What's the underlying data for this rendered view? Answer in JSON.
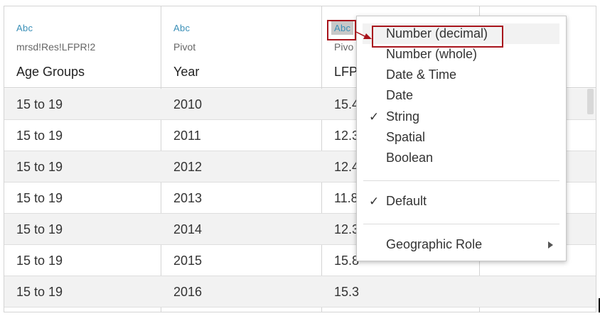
{
  "columns": [
    {
      "type_label": "Abc",
      "source": "mrsd!Res!LFPR!2",
      "field": "Age Groups"
    },
    {
      "type_label": "Abc",
      "source": "Pivot",
      "field": "Year"
    },
    {
      "type_label": "Abc",
      "source": "Pivo",
      "field": "LFP"
    },
    {
      "type_label": "",
      "source": "",
      "field": ""
    }
  ],
  "rows": [
    {
      "age": "15 to 19",
      "year": "2010",
      "value": "15.4"
    },
    {
      "age": "15 to 19",
      "year": "2011",
      "value": "12.3"
    },
    {
      "age": "15 to 19",
      "year": "2012",
      "value": "12.4"
    },
    {
      "age": "15 to 19",
      "year": "2013",
      "value": "11.8"
    },
    {
      "age": "15 to 19",
      "year": "2014",
      "value": "12.3"
    },
    {
      "age": "15 to 19",
      "year": "2015",
      "value": "15.8"
    },
    {
      "age": "15 to 19",
      "year": "2016",
      "value": "15.3"
    }
  ],
  "menu": {
    "type_items": [
      {
        "label": "Number (decimal)",
        "checked": false,
        "highlighted": true
      },
      {
        "label": "Number (whole)",
        "checked": false
      },
      {
        "label": "Date & Time",
        "checked": false
      },
      {
        "label": "Date",
        "checked": false
      },
      {
        "label": "String",
        "checked": true
      },
      {
        "label": "Spatial",
        "checked": false
      },
      {
        "label": "Boolean",
        "checked": false
      }
    ],
    "default_item": {
      "label": "Default",
      "checked": true
    },
    "geo_item": {
      "label": "Geographic Role"
    },
    "check_glyph": "✓"
  },
  "colors": {
    "type_label": "#3a8fb7",
    "callout": "#a8141c",
    "row_shade": "#f2f2f2"
  }
}
